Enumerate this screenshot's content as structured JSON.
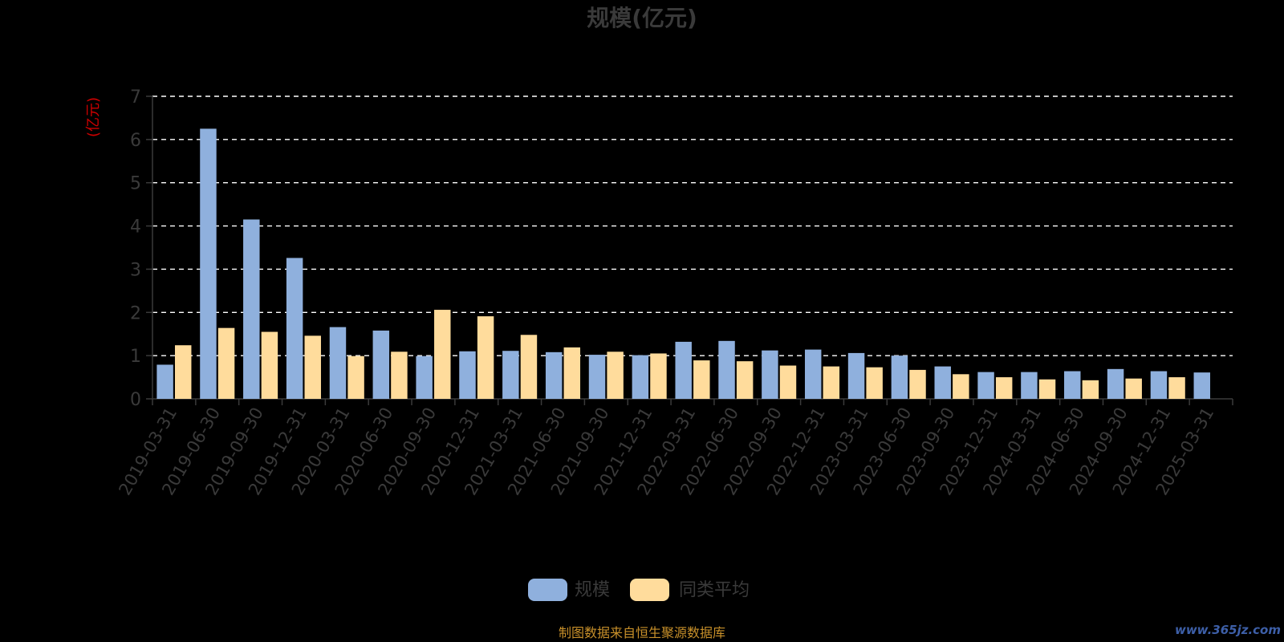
{
  "chart_data": {
    "type": "bar",
    "title": "规模(亿元)",
    "ylabel": "(亿元)",
    "ylim": [
      0,
      7
    ],
    "yticks": [
      "0",
      "1",
      "2",
      "3",
      "4",
      "5",
      "6",
      "7"
    ],
    "grid": true,
    "legend_position": "bottom-center",
    "categories": [
      "2019-03-31",
      "2019-06-30",
      "2019-09-30",
      "2019-12-31",
      "2020-03-31",
      "2020-06-30",
      "2020-09-30",
      "2020-12-31",
      "2021-03-31",
      "2021-06-30",
      "2021-09-30",
      "2021-12-31",
      "2022-03-31",
      "2022-06-30",
      "2022-09-30",
      "2022-12-31",
      "2023-03-31",
      "2023-06-30",
      "2023-09-30",
      "2023-12-31",
      "2024-03-31",
      "2024-06-30",
      "2024-09-30",
      "2024-12-31",
      "2025-03-31"
    ],
    "series": [
      {
        "name": "规模",
        "color": "#8fb0dd",
        "values": [
          0.79,
          6.25,
          4.15,
          3.26,
          1.66,
          1.58,
          0.99,
          1.1,
          1.11,
          1.08,
          1.02,
          1.01,
          1.32,
          1.34,
          1.12,
          1.14,
          1.06,
          1.0,
          0.75,
          0.62,
          0.62,
          0.64,
          0.69,
          0.64,
          0.61
        ]
      },
      {
        "name": "同类平均",
        "color": "#ffdc9c",
        "values": [
          1.24,
          1.64,
          1.55,
          1.46,
          0.99,
          1.09,
          2.06,
          1.91,
          1.48,
          1.19,
          1.09,
          1.05,
          0.89,
          0.87,
          0.77,
          0.75,
          0.73,
          0.67,
          0.57,
          0.5,
          0.45,
          0.43,
          0.47,
          0.5,
          null
        ]
      }
    ]
  },
  "footer": {
    "source": "制图数据来自恒生聚源数据库",
    "watermark": "www.365jz.com"
  },
  "colors": {
    "background": "#000000",
    "grid": "#ffffff",
    "axis_text": "#3a3a3a",
    "unit_label": "#cc0000",
    "source_text": "#c8902a",
    "watermark": "#3d5fa8"
  }
}
